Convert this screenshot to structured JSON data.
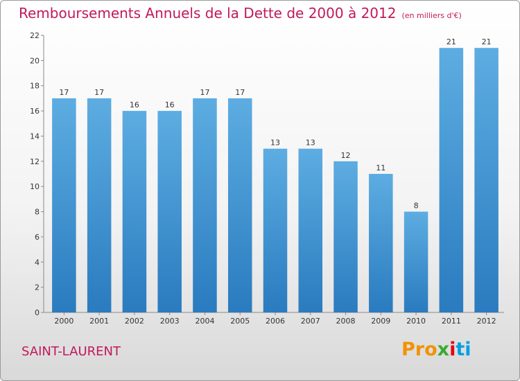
{
  "header": {
    "title": "Remboursements Annuels de la Dette de 2000 à 2012",
    "unit": "(en milliers d'€)"
  },
  "footer": {
    "city": "SAINT-LAURENT",
    "logo_parts": [
      "Pro",
      "x",
      "i",
      "ti"
    ]
  },
  "colors": {
    "bar_light": "#5dade2",
    "bar_dark": "#2a7bbf",
    "title": "#c2185b"
  },
  "chart_data": {
    "type": "bar",
    "title": "Remboursements Annuels de la Dette de 2000 à 2012",
    "subtitle": "(en milliers d'€)",
    "xlabel": "",
    "ylabel": "",
    "categories": [
      "2000",
      "2001",
      "2002",
      "2003",
      "2004",
      "2005",
      "2006",
      "2007",
      "2008",
      "2009",
      "2010",
      "2011",
      "2012"
    ],
    "values": [
      17,
      17,
      16,
      16,
      17,
      17,
      13,
      13,
      12,
      11,
      8,
      21,
      21
    ],
    "ylim": [
      0,
      22
    ],
    "yticks": [
      0,
      2,
      4,
      6,
      8,
      10,
      12,
      14,
      16,
      18,
      20,
      22
    ],
    "grid": false,
    "legend": "none"
  }
}
